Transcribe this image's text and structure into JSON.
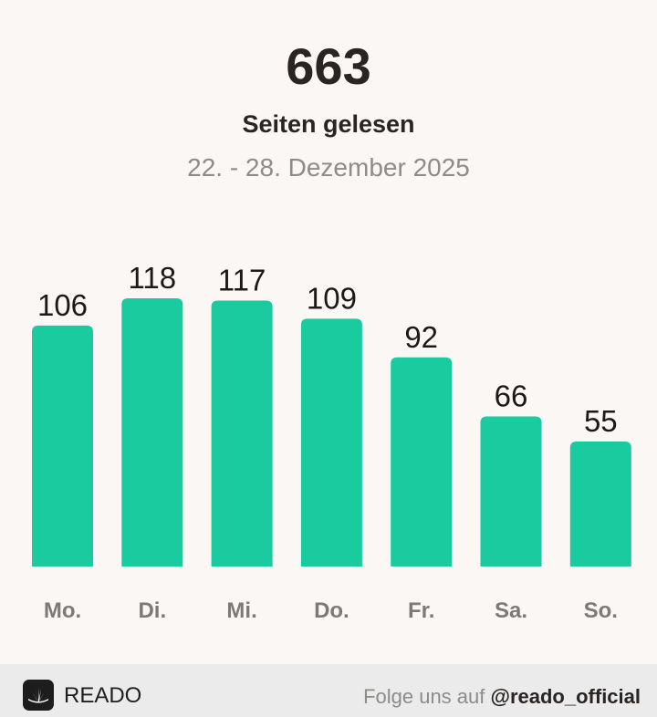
{
  "header": {
    "total": "663",
    "subtitle": "Seiten gelesen",
    "date_range": "22. - 28. Dezember 2025"
  },
  "chart_data": {
    "type": "bar",
    "categories": [
      "Mo.",
      "Di.",
      "Mi.",
      "Do.",
      "Fr.",
      "Sa.",
      "So."
    ],
    "values": [
      106,
      118,
      117,
      109,
      92,
      66,
      55
    ],
    "title": "",
    "xlabel": "",
    "ylabel": "",
    "ylim": [
      0,
      118
    ],
    "grid": false,
    "bar_color": "#19cb9e",
    "label_color": "#1c1a19",
    "category_color": "#7c7977"
  },
  "footer": {
    "brand": "READO",
    "logo_icon": "book-leaf-icon",
    "follow_text": "Folge uns auf",
    "handle": "@reado_official"
  },
  "colors": {
    "background": "#fbf7f4",
    "footer_background": "#ebebeb",
    "accent": "#19cb9e"
  }
}
